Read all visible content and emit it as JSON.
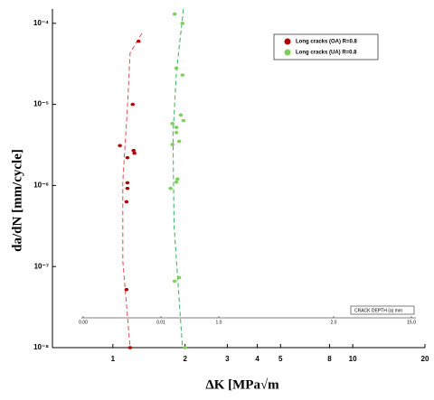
{
  "chart_data": {
    "type": "scatter",
    "xlabel": "ΔK [MPa√m",
    "ylabel": "da/dN [mm/cycle]",
    "xscale": "log",
    "yscale": "log",
    "xlim": [
      0.56,
      20
    ],
    "ylim": [
      1e-08,
      0.00015
    ],
    "xticks": [
      1,
      2,
      3,
      4,
      5,
      8,
      10,
      20
    ],
    "yticks": [
      {
        "value": 1e-08,
        "label": "10⁻⁸"
      },
      {
        "value": 1e-07,
        "label": "10⁻⁷"
      },
      {
        "value": 1e-06,
        "label": "10⁻⁶"
      },
      {
        "value": 1e-05,
        "label": "10⁻⁵"
      },
      {
        "value": 0.0001,
        "label": "10⁻⁴"
      }
    ],
    "legend": "upper right",
    "series": [
      {
        "name": "Long cracks (OA) R=0.8",
        "color": "#b00000",
        "x": [
          1.28,
          1.21,
          1.07,
          1.22,
          1.23,
          1.15,
          1.15,
          1.15,
          1.14,
          1.14,
          1.18
        ],
        "y": [
          6e-05,
          1e-05,
          3.1e-06,
          2.7e-06,
          2.5e-06,
          2.2e-06,
          1.08e-06,
          9.2e-07,
          6.3e-07,
          5.2e-08,
          1e-08
        ]
      },
      {
        "name": "Long cracks (UA) R=0.8",
        "color": "#7ccf5a",
        "x": [
          1.81,
          1.95,
          1.84,
          1.95,
          1.92,
          1.97,
          1.77,
          1.84,
          1.84,
          1.89,
          1.77,
          1.86,
          1.84,
          1.74,
          1.89,
          1.81,
          2.0
        ],
        "y": [
          0.00013,
          0.0001,
          2.8e-05,
          2.3e-05,
          7.4e-06,
          6.3e-06,
          5.8e-06,
          5.2e-06,
          4.5e-06,
          3.5e-06,
          3.2e-06,
          1.2e-06,
          1.1e-06,
          9.2e-07,
          7.3e-08,
          6.6e-08,
          1e-08
        ]
      }
    ],
    "fits": [
      {
        "color": "#e05050",
        "x": [
          1.32,
          1.18,
          1.15,
          1.1,
          1.1,
          1.18
        ],
        "y": [
          7.5e-05,
          4.3e-05,
          9e-06,
          1.1e-06,
          1.17e-07,
          1e-08
        ]
      },
      {
        "color": "#3cb060",
        "x": [
          1.97,
          1.84,
          1.78,
          1.8,
          1.95
        ],
        "y": [
          0.00015,
          2.5e-05,
          4.2e-06,
          3.2e-07,
          1e-08
        ]
      }
    ],
    "inset": {
      "title": "CRACK DEPTH (a) mm",
      "tick_labels": [
        "0.00",
        "0.01",
        "1.0",
        "2.0",
        "15.0"
      ]
    }
  }
}
